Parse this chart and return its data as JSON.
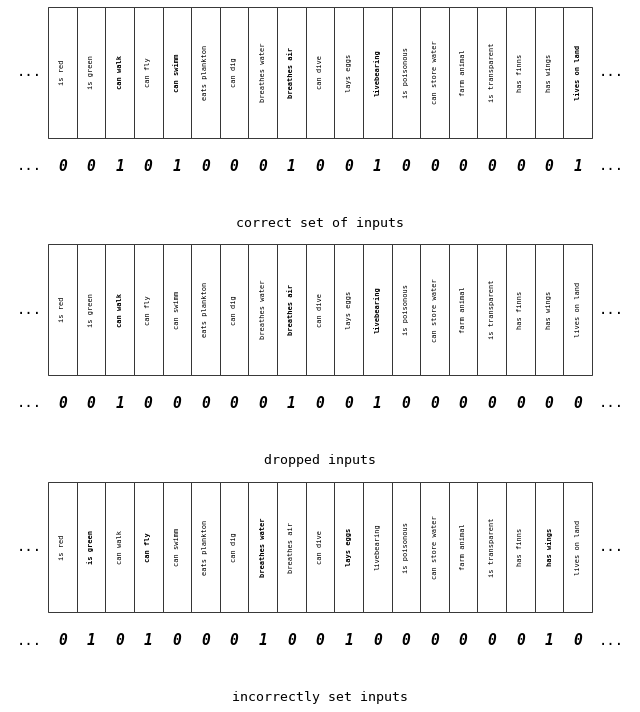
{
  "panels": [
    {
      "labels": [
        "is red",
        "is green",
        "can walk",
        "can fly",
        "can swimm",
        "eats plankton",
        "can dig",
        "breathes water",
        "breathes air",
        "can dive",
        "lays eggs",
        "livebearing",
        "is poisonous",
        "can store water",
        "farm animal",
        "is transparent",
        "has finns",
        "has wings",
        "lives on land"
      ],
      "bold": [
        false,
        false,
        true,
        false,
        true,
        false,
        false,
        false,
        true,
        false,
        false,
        true,
        false,
        false,
        false,
        false,
        false,
        false,
        true
      ],
      "bits": [
        0,
        0,
        1,
        0,
        1,
        0,
        0,
        0,
        1,
        0,
        0,
        1,
        0,
        0,
        0,
        0,
        0,
        0,
        1
      ],
      "title": "correct set of inputs"
    },
    {
      "labels": [
        "is red",
        "is green",
        "can walk",
        "can fly",
        "can swimm",
        "eats plankton",
        "can dig",
        "breathes water",
        "breathes air",
        "can dive",
        "lays eggs",
        "livebearing",
        "is poisonous",
        "can store water",
        "farm animal",
        "is transparent",
        "has finns",
        "has wings",
        "lives on land"
      ],
      "bold": [
        false,
        false,
        true,
        false,
        false,
        false,
        false,
        false,
        true,
        false,
        false,
        true,
        false,
        false,
        false,
        false,
        false,
        false,
        false
      ],
      "bits": [
        0,
        0,
        1,
        0,
        0,
        0,
        0,
        0,
        1,
        0,
        0,
        1,
        0,
        0,
        0,
        0,
        0,
        0,
        0
      ],
      "title": "dropped inputs"
    },
    {
      "labels": [
        "is red",
        "is green",
        "can walk",
        "can fly",
        "can swimm",
        "eats plankton",
        "can dig",
        "breathes water",
        "breathes air",
        "can dive",
        "lays eggs",
        "livebearing",
        "is poisonous",
        "can store water",
        "farm animal",
        "is transparent",
        "has finns",
        "has wings",
        "lives on land"
      ],
      "bold": [
        false,
        true,
        false,
        true,
        false,
        false,
        false,
        true,
        false,
        false,
        true,
        false,
        false,
        false,
        false,
        false,
        false,
        true,
        false
      ],
      "bits": [
        0,
        1,
        0,
        1,
        0,
        0,
        0,
        1,
        0,
        0,
        1,
        0,
        0,
        0,
        0,
        0,
        0,
        1,
        0
      ],
      "title": "incorrectly set inputs"
    }
  ],
  "bg_color": "#ffffff",
  "box_color": "#ffffff",
  "box_edge_color": "#333333",
  "text_color": "#000000",
  "dots_color": "#000000",
  "n_labels": 19,
  "fig_width": 6.4,
  "fig_height": 7.12,
  "dpi": 100
}
